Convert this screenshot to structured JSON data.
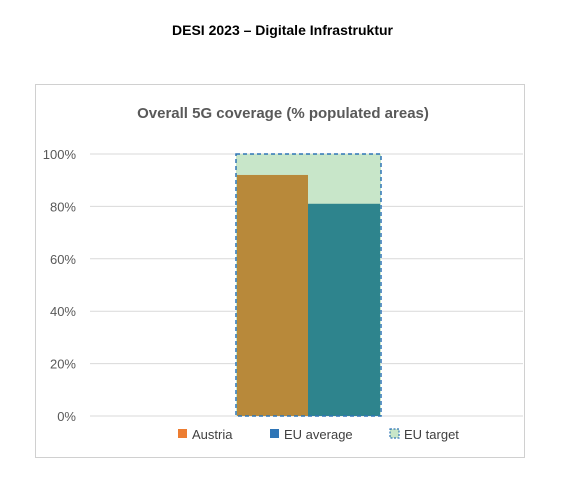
{
  "page": {
    "title": "DESI 2023 – Digitale Infrastruktur"
  },
  "chart_data": {
    "type": "bar",
    "title": "Overall 5G coverage (% populated areas)",
    "xlabel": "",
    "ylabel": "",
    "ylim": [
      0,
      100
    ],
    "yticks": [
      "0%",
      "20%",
      "40%",
      "60%",
      "80%",
      "100%"
    ],
    "grid": true,
    "legend_position": "bottom",
    "series": [
      {
        "name": "Austria",
        "value": 92,
        "color": "#B8893A",
        "legend_color": "#ED7D31"
      },
      {
        "name": "EU average",
        "value": 81,
        "color": "#2E848D",
        "legend_color": "#2E75B6"
      },
      {
        "name": "EU target",
        "value": 100,
        "color": "#C8E6C9",
        "style": "dashed-outline",
        "outline_color": "#2E75B6"
      }
    ]
  }
}
